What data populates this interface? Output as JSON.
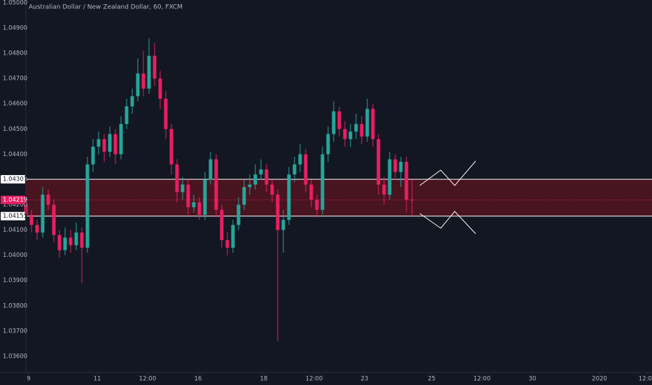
{
  "chart_data": {
    "type": "candlestick",
    "title": "Australian Dollar / New Zealand Dollar, 60, FXCM",
    "up_color": "#26a69a",
    "down_color": "#e91e63",
    "grid": false,
    "x": [
      0,
      4,
      8,
      12,
      16,
      20,
      24,
      28,
      32,
      36,
      40,
      44,
      48,
      52,
      56,
      60,
      64,
      68,
      72,
      76,
      80,
      84,
      88,
      92,
      96,
      100,
      104,
      108,
      112,
      116,
      120,
      124,
      128,
      132,
      136,
      140,
      144,
      148,
      152,
      156,
      160,
      164,
      168,
      172,
      176,
      180,
      184,
      188,
      192,
      196,
      200,
      204,
      208,
      212,
      216,
      220,
      224,
      228,
      232,
      236,
      240,
      244,
      248,
      252,
      256,
      260,
      264,
      268,
      272,
      276
    ],
    "open": [
      1.042,
      1.0416,
      1.0412,
      1.0409,
      1.0424,
      1.042,
      1.0408,
      1.0402,
      1.0407,
      1.0404,
      1.0409,
      1.0403,
      1.0436,
      1.0443,
      1.0446,
      1.0441,
      1.0448,
      1.044,
      1.0452,
      1.0459,
      1.0463,
      1.0472,
      1.0466,
      1.0479,
      1.047,
      1.0462,
      1.045,
      1.0436,
      1.0425,
      1.0428,
      1.0419,
      1.0421,
      1.0416,
      1.043,
      1.0438,
      1.0418,
      1.0406,
      1.0403,
      1.0412,
      1.042,
      1.0427,
      1.0428,
      1.0432,
      1.0434,
      1.0428,
      1.0424,
      1.041,
      1.0414,
      1.0432,
      1.0436,
      1.044,
      1.0428,
      1.0422,
      1.0418,
      1.044,
      1.0448,
      1.0457,
      1.045,
      1.0446,
      1.0449,
      1.0452,
      1.0447,
      1.0458,
      1.0446,
      1.0428,
      1.0424,
      1.0438,
      1.0433,
      1.0437,
      1.0422
    ],
    "high": [
      1.0424,
      1.0418,
      1.0414,
      1.0427,
      1.0426,
      1.0422,
      1.041,
      1.0411,
      1.041,
      1.0413,
      1.0411,
      1.0439,
      1.0446,
      1.0449,
      1.0448,
      1.0451,
      1.045,
      1.0455,
      1.0462,
      1.0466,
      1.0478,
      1.0481,
      1.0486,
      1.0484,
      1.0473,
      1.0465,
      1.0452,
      1.0438,
      1.0431,
      1.043,
      1.0424,
      1.0423,
      1.0433,
      1.0441,
      1.044,
      1.042,
      1.0409,
      1.0414,
      1.0423,
      1.043,
      1.0432,
      1.0436,
      1.0438,
      1.0436,
      1.043,
      1.0426,
      1.0418,
      1.0435,
      1.0439,
      1.0444,
      1.0442,
      1.043,
      1.0424,
      1.0443,
      1.0451,
      1.0461,
      1.0459,
      1.0453,
      1.0452,
      1.0456,
      1.0455,
      1.0462,
      1.046,
      1.0448,
      1.0431,
      1.0441,
      1.044,
      1.0439,
      1.0439,
      1.043
    ],
    "low": [
      1.0414,
      1.0409,
      1.0406,
      1.0407,
      1.0418,
      1.0405,
      1.0399,
      1.04,
      1.0401,
      1.0402,
      1.0389,
      1.0401,
      1.0433,
      1.044,
      1.0437,
      1.0439,
      1.0436,
      1.0438,
      1.045,
      1.0456,
      1.0461,
      1.0463,
      1.0464,
      1.0467,
      1.0458,
      1.0446,
      1.0432,
      1.0421,
      1.0422,
      1.0416,
      1.0417,
      1.0414,
      1.0414,
      1.0428,
      1.0415,
      1.0403,
      1.04,
      1.0401,
      1.041,
      1.0418,
      1.0424,
      1.0426,
      1.043,
      1.0425,
      1.0421,
      1.0366,
      1.0401,
      1.0412,
      1.0429,
      1.0433,
      1.0425,
      1.0419,
      1.0415,
      1.0416,
      1.0437,
      1.0445,
      1.0447,
      1.0443,
      1.0443,
      1.0446,
      1.0444,
      1.0445,
      1.0443,
      1.0424,
      1.042,
      1.0422,
      1.043,
      1.0427,
      1.0417,
      1.04155
    ],
    "close": [
      1.0416,
      1.0412,
      1.0409,
      1.0424,
      1.042,
      1.0408,
      1.0402,
      1.0407,
      1.0404,
      1.0409,
      1.0403,
      1.0436,
      1.0443,
      1.0446,
      1.0441,
      1.0448,
      1.044,
      1.0452,
      1.0459,
      1.0463,
      1.0472,
      1.0466,
      1.0479,
      1.047,
      1.0462,
      1.045,
      1.0436,
      1.0425,
      1.0428,
      1.0419,
      1.0421,
      1.0416,
      1.043,
      1.0438,
      1.0418,
      1.0406,
      1.0403,
      1.0412,
      1.042,
      1.0427,
      1.0428,
      1.0432,
      1.0434,
      1.0428,
      1.0424,
      1.041,
      1.0414,
      1.0432,
      1.0436,
      1.044,
      1.0428,
      1.0422,
      1.0418,
      1.044,
      1.0448,
      1.0457,
      1.045,
      1.0446,
      1.0449,
      1.0452,
      1.0447,
      1.0458,
      1.0446,
      1.0428,
      1.0424,
      1.0438,
      1.0433,
      1.0437,
      1.0422,
      1.04219
    ],
    "xlim": [
      0,
      447.5
    ],
    "xticks": [
      {
        "value": 2,
        "label": "9"
      },
      {
        "value": 51,
        "label": "11"
      },
      {
        "value": 87,
        "label": "12:00"
      },
      {
        "value": 123,
        "label": "16"
      },
      {
        "value": 170,
        "label": "18"
      },
      {
        "value": 206,
        "label": "12:00"
      },
      {
        "value": 242,
        "label": "23"
      },
      {
        "value": 290,
        "label": "25"
      },
      {
        "value": 326,
        "label": "12:00"
      },
      {
        "value": 362,
        "label": "30"
      },
      {
        "value": 410,
        "label": "2020"
      },
      {
        "value": 444,
        "label": "12:00"
      }
    ],
    "ylim": [
      1.03536,
      1.05011
    ],
    "yticks": [
      {
        "value": 1.036,
        "label": "1.03600"
      },
      {
        "value": 1.037,
        "label": "1.03700"
      },
      {
        "value": 1.038,
        "label": "1.03800"
      },
      {
        "value": 1.039,
        "label": "1.03900"
      },
      {
        "value": 1.04,
        "label": "1.04000"
      },
      {
        "value": 1.041,
        "label": "1.04100"
      },
      {
        "value": 1.042,
        "label": "1.04200"
      },
      {
        "value": 1.043,
        "label": "1.04300"
      },
      {
        "value": 1.044,
        "label": "1.04400"
      },
      {
        "value": 1.045,
        "label": "1.04500"
      },
      {
        "value": 1.046,
        "label": "1.04600"
      },
      {
        "value": 1.047,
        "label": "1.04700"
      },
      {
        "value": 1.048,
        "label": "1.04800"
      },
      {
        "value": 1.049,
        "label": "1.04900"
      },
      {
        "value": 1.05,
        "label": "1.05000"
      }
    ],
    "zone": {
      "top": 1.04301,
      "bottom": 1.04155,
      "color": "#5a1420"
    },
    "last_price": 1.04219
  }
}
